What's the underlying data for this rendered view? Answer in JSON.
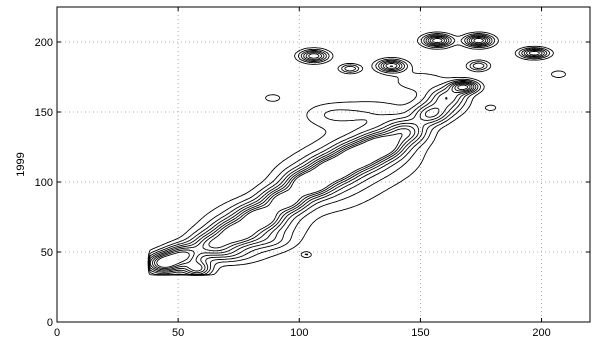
{
  "chart_data": {
    "type": "contour",
    "title": "",
    "xlabel": "",
    "ylabel": "1999",
    "xlim": [
      0,
      220
    ],
    "ylim": [
      0,
      225
    ],
    "xticks": [
      0,
      50,
      100,
      150,
      200
    ],
    "yticks": [
      0,
      50,
      100,
      150,
      200
    ],
    "grid": true,
    "colors": {
      "line": "#000000",
      "grid": "#9a9a9a",
      "background": "#ffffff"
    },
    "ridge": [
      {
        "x": 44,
        "y": 42,
        "amp": 9,
        "s": 5
      },
      {
        "x": 52,
        "y": 48,
        "amp": 7,
        "s": 5
      },
      {
        "x": 58,
        "y": 38,
        "amp": 6,
        "s": 4
      },
      {
        "x": 64,
        "y": 55,
        "amp": 6,
        "s": 6
      },
      {
        "x": 74,
        "y": 64,
        "amp": 6,
        "s": 6
      },
      {
        "x": 84,
        "y": 75,
        "amp": 7,
        "s": 6
      },
      {
        "x": 94,
        "y": 87,
        "amp": 8,
        "s": 6
      },
      {
        "x": 104,
        "y": 99,
        "amp": 9,
        "s": 6
      },
      {
        "x": 114,
        "y": 109,
        "amp": 8,
        "s": 6
      },
      {
        "x": 124,
        "y": 118,
        "amp": 8,
        "s": 6
      },
      {
        "x": 134,
        "y": 126,
        "amp": 8,
        "s": 6
      },
      {
        "x": 144,
        "y": 136,
        "amp": 6,
        "s": 6
      },
      {
        "x": 154,
        "y": 148,
        "amp": 5,
        "s": 5
      },
      {
        "x": 160,
        "y": 156,
        "amp": 4,
        "s": 6
      },
      {
        "x": 84,
        "y": 70,
        "amp": 3,
        "s": 12
      },
      {
        "x": 110,
        "y": 100,
        "amp": 3,
        "s": 14
      },
      {
        "x": 130,
        "y": 120,
        "amp": 3,
        "s": 14
      },
      {
        "x": 74,
        "y": 60,
        "amp": 2,
        "s": 12
      }
    ],
    "islands": [
      {
        "x": 106,
        "y": 190,
        "amp": 7,
        "sx": 4,
        "sy": 3
      },
      {
        "x": 121,
        "y": 181,
        "amp": 4,
        "sx": 3,
        "sy": 2.2
      },
      {
        "x": 138,
        "y": 183,
        "amp": 7,
        "sx": 4,
        "sy": 3
      },
      {
        "x": 157,
        "y": 201,
        "amp": 8,
        "sx": 4,
        "sy": 3
      },
      {
        "x": 174,
        "y": 201,
        "amp": 8,
        "sx": 4,
        "sy": 3
      },
      {
        "x": 168,
        "y": 168,
        "amp": 8,
        "sx": 4,
        "sy": 3
      },
      {
        "x": 174,
        "y": 183,
        "amp": 4,
        "sx": 3,
        "sy": 2.5
      },
      {
        "x": 197,
        "y": 192,
        "amp": 7,
        "sx": 4,
        "sy": 2.5
      },
      {
        "x": 207,
        "y": 177,
        "amp": 2,
        "sx": 2.5,
        "sy": 2
      },
      {
        "x": 89,
        "y": 160,
        "amp": 2,
        "sx": 2.5,
        "sy": 2
      },
      {
        "x": 103,
        "y": 48,
        "amp": 2,
        "sx": 1.5,
        "sy": 1.5
      },
      {
        "x": 179,
        "y": 153,
        "amp": 2,
        "sx": 1.8,
        "sy": 1.6
      },
      {
        "x": 162,
        "y": 162,
        "amp": 3,
        "sx": 5,
        "sy": 4
      },
      {
        "x": 130,
        "y": 150,
        "amp": 1.5,
        "sx": 12,
        "sy": 7
      },
      {
        "x": 112,
        "y": 148,
        "amp": 1.5,
        "sx": 8,
        "sy": 6
      },
      {
        "x": 150,
        "y": 172,
        "amp": 1.5,
        "sx": 10,
        "sy": 6
      },
      {
        "x": 72,
        "y": 48,
        "amp": 1.5,
        "sx": 6,
        "sy": 4
      },
      {
        "x": 88,
        "y": 58,
        "amp": 1.2,
        "sx": 6,
        "sy": 4
      }
    ],
    "levels": [
      1,
      2,
      3,
      4,
      5,
      6,
      7,
      8
    ],
    "cutoff": {
      "xmin": 38,
      "ymin": 34
    }
  }
}
